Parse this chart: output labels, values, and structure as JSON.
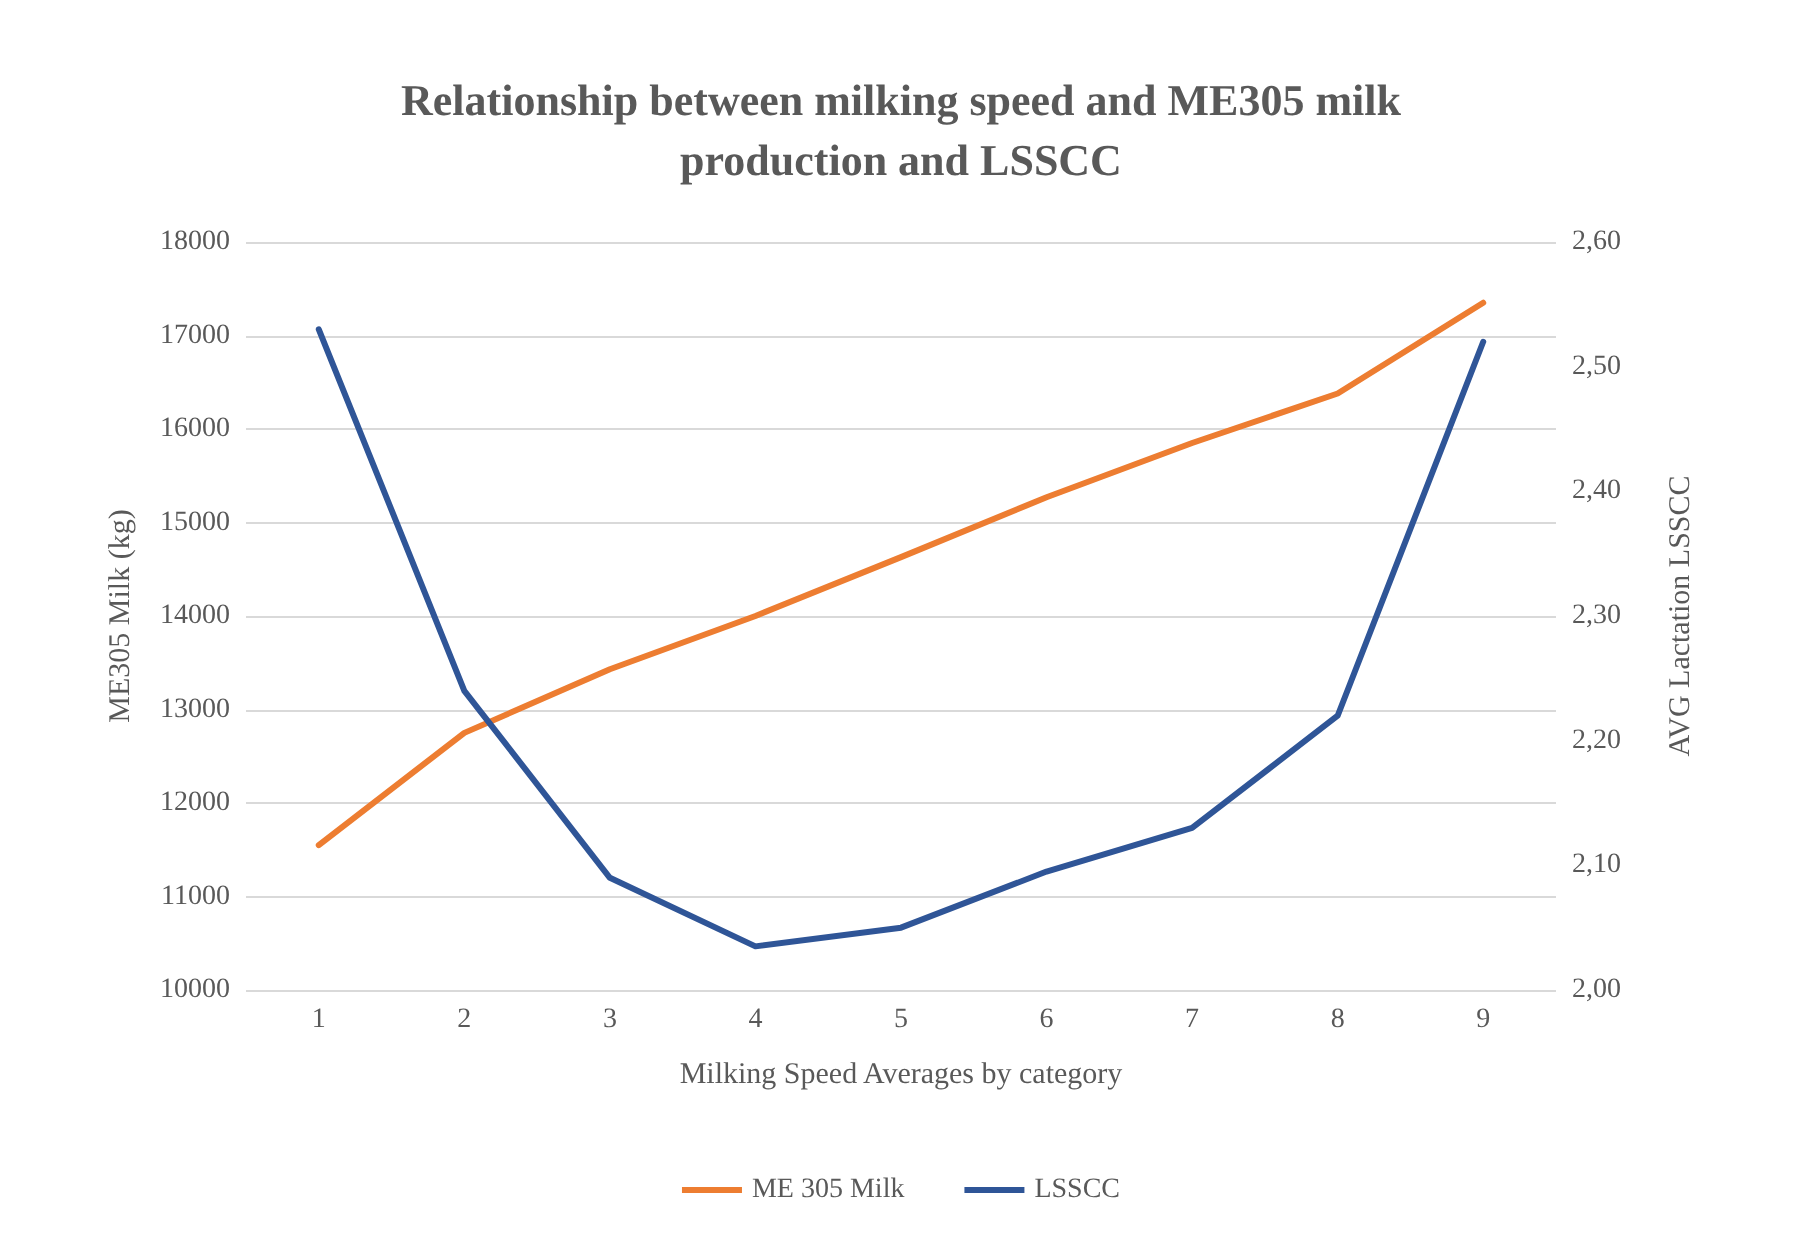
{
  "chart_data": {
    "type": "line",
    "title": "Relationship between milking speed and ME305 milk\nproduction and LSSCC",
    "xlabel": "Milking Speed Averages by category",
    "ylabel": "ME305 Milk (kg)",
    "y2label": "AVG Lactation LSSCC",
    "categories": [
      "1",
      "2",
      "3",
      "4",
      "5",
      "6",
      "7",
      "8",
      "9"
    ],
    "series": [
      {
        "name": "ME 305 Milk",
        "color": "#ed7d31",
        "values": [
          11550,
          12750,
          13430,
          14000,
          14630,
          15270,
          15850,
          16380,
          17350
        ]
      },
      {
        "name": "LSSCC",
        "color": "#2f5597",
        "axis": "y2",
        "values": [
          2.53,
          2.24,
          2.09,
          2.035,
          2.05,
          2.095,
          2.13,
          2.22,
          2.52
        ]
      }
    ],
    "ylim": [
      10000,
      18000
    ],
    "yticks": [
      10000,
      11000,
      12000,
      13000,
      14000,
      15000,
      16000,
      17000,
      18000
    ],
    "y2lim": [
      2.0,
      2.6
    ],
    "y2ticks": [
      {
        "value": 2.0,
        "label": "2,00"
      },
      {
        "value": 2.1,
        "label": "2,10"
      },
      {
        "value": 2.2,
        "label": "2,20"
      },
      {
        "value": 2.3,
        "label": "2,30"
      },
      {
        "value": 2.4,
        "label": "2,40"
      },
      {
        "value": 2.5,
        "label": "2,50"
      },
      {
        "value": 2.6,
        "label": "2,60"
      }
    ],
    "grid": "y",
    "legend": "bottom",
    "marker": "none",
    "line_style": "solid"
  }
}
